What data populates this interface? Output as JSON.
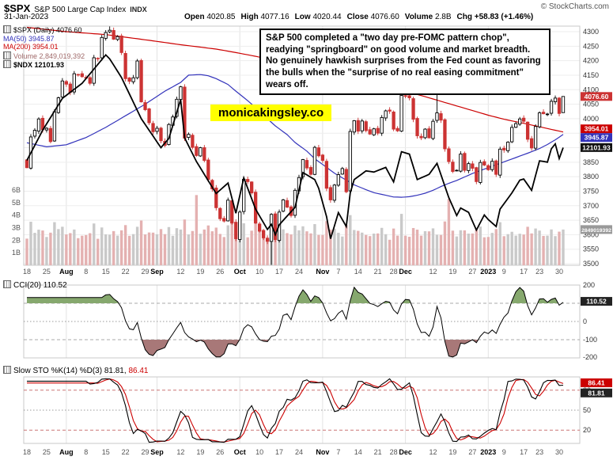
{
  "header": {
    "symbol": "$SPX",
    "index_name": "S&P 500 Large Cap Index",
    "exchange": "INDX",
    "copyright": "© StockCharts.com",
    "date": "31-Jan-2023",
    "quote": {
      "open": {
        "label": "Open",
        "value": "4020.85"
      },
      "high": {
        "label": "High",
        "value": "4077.16"
      },
      "low": {
        "label": "Low",
        "value": "4020.44"
      },
      "close": {
        "label": "Close",
        "value": "4076.60"
      },
      "volume": {
        "label": "Volume",
        "value": "2.8B"
      },
      "chg": {
        "label": "Chg",
        "value": "+58.83 (+1.46%)"
      }
    }
  },
  "main_legend": {
    "spx": "$SPX (Daily) 4076.60",
    "ma50": "MA(50) 3945.87",
    "ma200": "MA(200) 3954.01",
    "volume": "Volume 2,849,019,392",
    "ndx": "$NDX 12101.93"
  },
  "annotation": {
    "text": "S&P 500 completed a \"two day pre-FOMC pattern chop\", readying \"springboard\" on good volume and market breadth. No genuinely hawkish surprises from the Fed count as favoring the bulls when the \"surprise of no real easing commitment\" wears off."
  },
  "watermark": {
    "text": "monicakingsley.co",
    "bg": "#ffff00"
  },
  "cci_panel": {
    "title": "CCI(20) 110.52"
  },
  "sto_panel": {
    "title_k": "Slow STO %K(14) %D(3) 81.81,",
    "title_d": "86.41"
  },
  "badges": {
    "close": "4076.60",
    "ma50": "3945.87",
    "ma200": "3954.01",
    "ndx": "12101.93",
    "volume": "2849019392",
    "cci": "110.52",
    "sto_d": "86.41",
    "sto_k": "81.81"
  },
  "colors": {
    "up": "#000000",
    "down": "#cc3333",
    "ma50": "#3333bb",
    "ma200": "#cc0000",
    "ndx": "#000000",
    "vol_up": "#c9c9c9",
    "vol_down": "#e4b1b1",
    "cci_pos": "#86a86e",
    "cci_neg": "#a87878",
    "accent_yellow": "#ffff00"
  },
  "chart_data": {
    "type": "candlestick",
    "title": "$SPX daily with MA(50), MA(200), Volume, $NDX overlay, CCI(20), Slow STO(14,3)",
    "date_range": "18-Jul-2022 to 31-Jan-2023",
    "price_axis": [
      4300,
      4250,
      4200,
      4150,
      4100,
      4050,
      4000,
      3950,
      3900,
      3850,
      3800,
      3750,
      3700,
      3650,
      3600,
      3550,
      3500
    ],
    "volume_axis": [
      "6B",
      "5B",
      "4B",
      "3B",
      "2B",
      "1B"
    ],
    "cci_axis": [
      200,
      0,
      -100,
      -200
    ],
    "sto_axis": [
      80,
      50,
      20
    ],
    "month_lines": [
      10,
      33,
      54,
      75,
      96,
      117
    ],
    "x_ticks": [
      {
        "i": 0,
        "t": "18"
      },
      {
        "i": 5,
        "t": "25"
      },
      {
        "i": 10,
        "t": "Aug",
        "m": true
      },
      {
        "i": 15,
        "t": "8"
      },
      {
        "i": 20,
        "t": "15"
      },
      {
        "i": 25,
        "t": "22"
      },
      {
        "i": 30,
        "t": "29"
      },
      {
        "i": 33,
        "t": "Sep",
        "m": true
      },
      {
        "i": 39,
        "t": "12"
      },
      {
        "i": 44,
        "t": "19"
      },
      {
        "i": 49,
        "t": "26"
      },
      {
        "i": 54,
        "t": "Oct",
        "m": true
      },
      {
        "i": 59,
        "t": "10"
      },
      {
        "i": 64,
        "t": "17"
      },
      {
        "i": 69,
        "t": "24"
      },
      {
        "i": 75,
        "t": "Nov",
        "m": true
      },
      {
        "i": 79,
        "t": "7"
      },
      {
        "i": 84,
        "t": "14"
      },
      {
        "i": 89,
        "t": "21"
      },
      {
        "i": 93,
        "t": "28"
      },
      {
        "i": 96,
        "t": "Dec",
        "m": true
      },
      {
        "i": 103,
        "t": "12"
      },
      {
        "i": 108,
        "t": "19"
      },
      {
        "i": 113,
        "t": "27"
      },
      {
        "i": 117,
        "t": "2023",
        "m": true
      },
      {
        "i": 121,
        "t": "9"
      },
      {
        "i": 126,
        "t": "17"
      },
      {
        "i": 130,
        "t": "23"
      },
      {
        "i": 135,
        "t": "30"
      }
    ],
    "closes": [
      3831,
      3937,
      3960,
      3999,
      3962,
      3967,
      3921,
      4024,
      4072,
      4130,
      4119,
      4091,
      4155,
      4152,
      4145,
      4140,
      4122,
      4210,
      4207,
      4280,
      4297,
      4305,
      4274,
      4283,
      4228,
      4138,
      4129,
      4141,
      4199,
      4058,
      4031,
      3986,
      3955,
      3967,
      3924,
      3908,
      3980,
      4006,
      4067,
      4110,
      3933,
      3946,
      3901,
      3873,
      3900,
      3856,
      3790,
      3758,
      3693,
      3655,
      3647,
      3719,
      3640,
      3586,
      3678,
      3791,
      3783,
      3744,
      3640,
      3612,
      3589,
      3577,
      3670,
      3583,
      3678,
      3720,
      3695,
      3666,
      3753,
      3797,
      3859,
      3830,
      3808,
      3901,
      3872,
      3856,
      3760,
      3720,
      3771,
      3807,
      3828,
      3748,
      3956,
      3993,
      3957,
      3992,
      3959,
      3947,
      3965,
      3950,
      4004,
      4027,
      4026,
      3964,
      3958,
      4080,
      4077,
      4072,
      3998,
      3941,
      3934,
      3964,
      3934,
      3991,
      4020,
      3995,
      3896,
      3852,
      3818,
      3822,
      3878,
      3822,
      3845,
      3829,
      3783,
      3849,
      3840,
      3824,
      3853,
      3808,
      3895,
      3892,
      3919,
      3970,
      3983,
      3999,
      3991,
      3929,
      3899,
      3973,
      4020,
      4017,
      4016,
      4060,
      4071,
      4018,
      4076.6
    ],
    "open_overrides": {
      "136": 4020.85
    },
    "high_overrides": {
      "21": 4318,
      "96": 4093,
      "104": 4100,
      "136": 4077.16
    },
    "low_overrides": {
      "62": 3496,
      "136": 4020.44
    },
    "volume_overrides": {
      "43": 5.6,
      "62": 3.9,
      "82": 4.0,
      "95": 4.1,
      "107": 5.3,
      "136": 2.85
    },
    "ndx_anchors": [
      [
        0,
        11880
      ],
      [
        4,
        12400
      ],
      [
        9,
        12950
      ],
      [
        14,
        13210
      ],
      [
        20,
        13700
      ],
      [
        21,
        13630
      ],
      [
        24,
        13310
      ],
      [
        29,
        12600
      ],
      [
        34,
        12100
      ],
      [
        36,
        12260
      ],
      [
        39,
        12930
      ],
      [
        40,
        12270
      ],
      [
        43,
        11860
      ],
      [
        48,
        11310
      ],
      [
        51,
        11490
      ],
      [
        53,
        10970
      ],
      [
        55,
        11580
      ],
      [
        58,
        11040
      ],
      [
        61,
        10690
      ],
      [
        62,
        10780
      ],
      [
        63,
        10600
      ],
      [
        64,
        10770
      ],
      [
        68,
        11070
      ],
      [
        70,
        11670
      ],
      [
        73,
        11550
      ],
      [
        74,
        11400
      ],
      [
        76,
        10910
      ],
      [
        77,
        10530
      ],
      [
        79,
        10980
      ],
      [
        81,
        10740
      ],
      [
        82,
        11320
      ],
      [
        83,
        11550
      ],
      [
        86,
        11700
      ],
      [
        88,
        11680
      ],
      [
        91,
        11760
      ],
      [
        93,
        11510
      ],
      [
        95,
        12030
      ],
      [
        97,
        11990
      ],
      [
        99,
        11550
      ],
      [
        102,
        11640
      ],
      [
        104,
        11830
      ],
      [
        107,
        11240
      ],
      [
        109,
        10930
      ],
      [
        110,
        11060
      ],
      [
        112,
        10985
      ],
      [
        114,
        10679
      ],
      [
        116,
        10940
      ],
      [
        117,
        10860
      ],
      [
        119,
        10740
      ],
      [
        120,
        11040
      ],
      [
        123,
        11320
      ],
      [
        125,
        11540
      ],
      [
        126,
        11560
      ],
      [
        128,
        11364
      ],
      [
        129,
        11620
      ],
      [
        130,
        11874
      ],
      [
        132,
        11850
      ],
      [
        133,
        12080
      ],
      [
        134,
        12166
      ],
      [
        135,
        11912
      ],
      [
        136,
        12102
      ]
    ],
    "ma50_anchors": [
      [
        0,
        3917
      ],
      [
        5,
        3903
      ],
      [
        10,
        3910
      ],
      [
        15,
        3935
      ],
      [
        20,
        3970
      ],
      [
        25,
        4010
      ],
      [
        30,
        4050
      ],
      [
        35,
        4095
      ],
      [
        39,
        4125
      ],
      [
        41,
        4150
      ],
      [
        44,
        4152
      ],
      [
        46,
        4148
      ],
      [
        48,
        4138
      ],
      [
        51,
        4118
      ],
      [
        53,
        4095
      ],
      [
        56,
        4062
      ],
      [
        58,
        4038
      ],
      [
        61,
        4000
      ],
      [
        63,
        3975
      ],
      [
        66,
        3945
      ],
      [
        68,
        3918
      ],
      [
        71,
        3888
      ],
      [
        73,
        3862
      ],
      [
        76,
        3832
      ],
      [
        78,
        3812
      ],
      [
        81,
        3788
      ],
      [
        83,
        3772
      ],
      [
        86,
        3755
      ],
      [
        88,
        3745
      ],
      [
        91,
        3736
      ],
      [
        93,
        3730
      ],
      [
        95,
        3729
      ],
      [
        97,
        3731
      ],
      [
        99,
        3736
      ],
      [
        101,
        3743
      ],
      [
        103,
        3753
      ],
      [
        105,
        3766
      ],
      [
        107,
        3777
      ],
      [
        109,
        3787
      ],
      [
        111,
        3799
      ],
      [
        113,
        3811
      ],
      [
        115,
        3821
      ],
      [
        117,
        3831
      ],
      [
        119,
        3841
      ],
      [
        121,
        3851
      ],
      [
        123,
        3861
      ],
      [
        125,
        3871
      ],
      [
        126,
        3876
      ],
      [
        128,
        3886
      ],
      [
        130,
        3897
      ],
      [
        132,
        3911
      ],
      [
        134,
        3927
      ],
      [
        136,
        3945.87
      ]
    ],
    "ma200_anchors": [
      [
        0,
        4315
      ],
      [
        10,
        4300
      ],
      [
        20,
        4290
      ],
      [
        30,
        4272
      ],
      [
        39,
        4255
      ],
      [
        48,
        4240
      ],
      [
        53,
        4228
      ],
      [
        58,
        4215
      ],
      [
        63,
        4200
      ],
      [
        68,
        4185
      ],
      [
        73,
        4170
      ],
      [
        78,
        4155
      ],
      [
        83,
        4140
      ],
      [
        88,
        4122
      ],
      [
        93,
        4105
      ],
      [
        96,
        4095
      ],
      [
        103,
        4068
      ],
      [
        108,
        4048
      ],
      [
        113,
        4028
      ],
      [
        117,
        4012
      ],
      [
        121,
        3998
      ],
      [
        126,
        3984
      ],
      [
        130,
        3972
      ],
      [
        136,
        3954.01
      ]
    ],
    "series_info": [
      {
        "name": "$SPX (Daily)",
        "type": "candlestick",
        "last": 4076.6
      },
      {
        "name": "MA(50)",
        "type": "line",
        "color": "#3333bb",
        "last": 3945.87
      },
      {
        "name": "MA(200)",
        "type": "line",
        "color": "#cc0000",
        "last": 3954.01
      },
      {
        "name": "Volume",
        "type": "bars",
        "last": 2849019392
      },
      {
        "name": "$NDX",
        "type": "line",
        "color": "#000000",
        "last": 12101.93
      },
      {
        "name": "CCI(20)",
        "type": "oscillator",
        "last": 110.52
      },
      {
        "name": "Slow STO %K(14)",
        "type": "oscillator",
        "last": 81.81
      },
      {
        "name": "Slow STO %D(3)",
        "type": "oscillator",
        "last": 86.41
      }
    ]
  }
}
